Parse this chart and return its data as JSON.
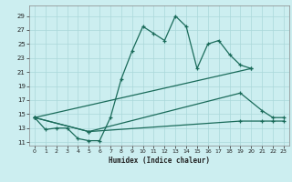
{
  "xlabel": "Humidex (Indice chaleur)",
  "background_color": "#cceef0",
  "grid_color": "#aad8da",
  "line_color": "#1a6b5a",
  "xlim": [
    -0.5,
    23.5
  ],
  "ylim": [
    10.5,
    30.5
  ],
  "xticks": [
    0,
    1,
    2,
    3,
    4,
    5,
    6,
    7,
    8,
    9,
    10,
    11,
    12,
    13,
    14,
    15,
    16,
    17,
    18,
    19,
    20,
    21,
    22,
    23
  ],
  "yticks": [
    11,
    13,
    15,
    17,
    19,
    21,
    23,
    25,
    27,
    29
  ],
  "line1_x": [
    0,
    1,
    2,
    3,
    4,
    5,
    6,
    7,
    8,
    9,
    10,
    11,
    12,
    13,
    14,
    15,
    16,
    17,
    18,
    19,
    20
  ],
  "line1_y": [
    14.5,
    12.8,
    13.0,
    13.0,
    11.5,
    11.2,
    11.2,
    14.5,
    20.0,
    24.0,
    27.5,
    26.5,
    25.5,
    29.0,
    27.5,
    21.5,
    25.0,
    25.5,
    23.5,
    22.0,
    21.5
  ],
  "line2_x": [
    0,
    20
  ],
  "line2_y": [
    14.5,
    21.5
  ],
  "line3_x": [
    0,
    5,
    19,
    21,
    22,
    23
  ],
  "line3_y": [
    14.5,
    12.5,
    18.0,
    15.5,
    14.5,
    14.5
  ],
  "line4_x": [
    0,
    5,
    19,
    21,
    22,
    23
  ],
  "line4_y": [
    14.5,
    12.5,
    14.0,
    14.0,
    14.0,
    14.0
  ]
}
